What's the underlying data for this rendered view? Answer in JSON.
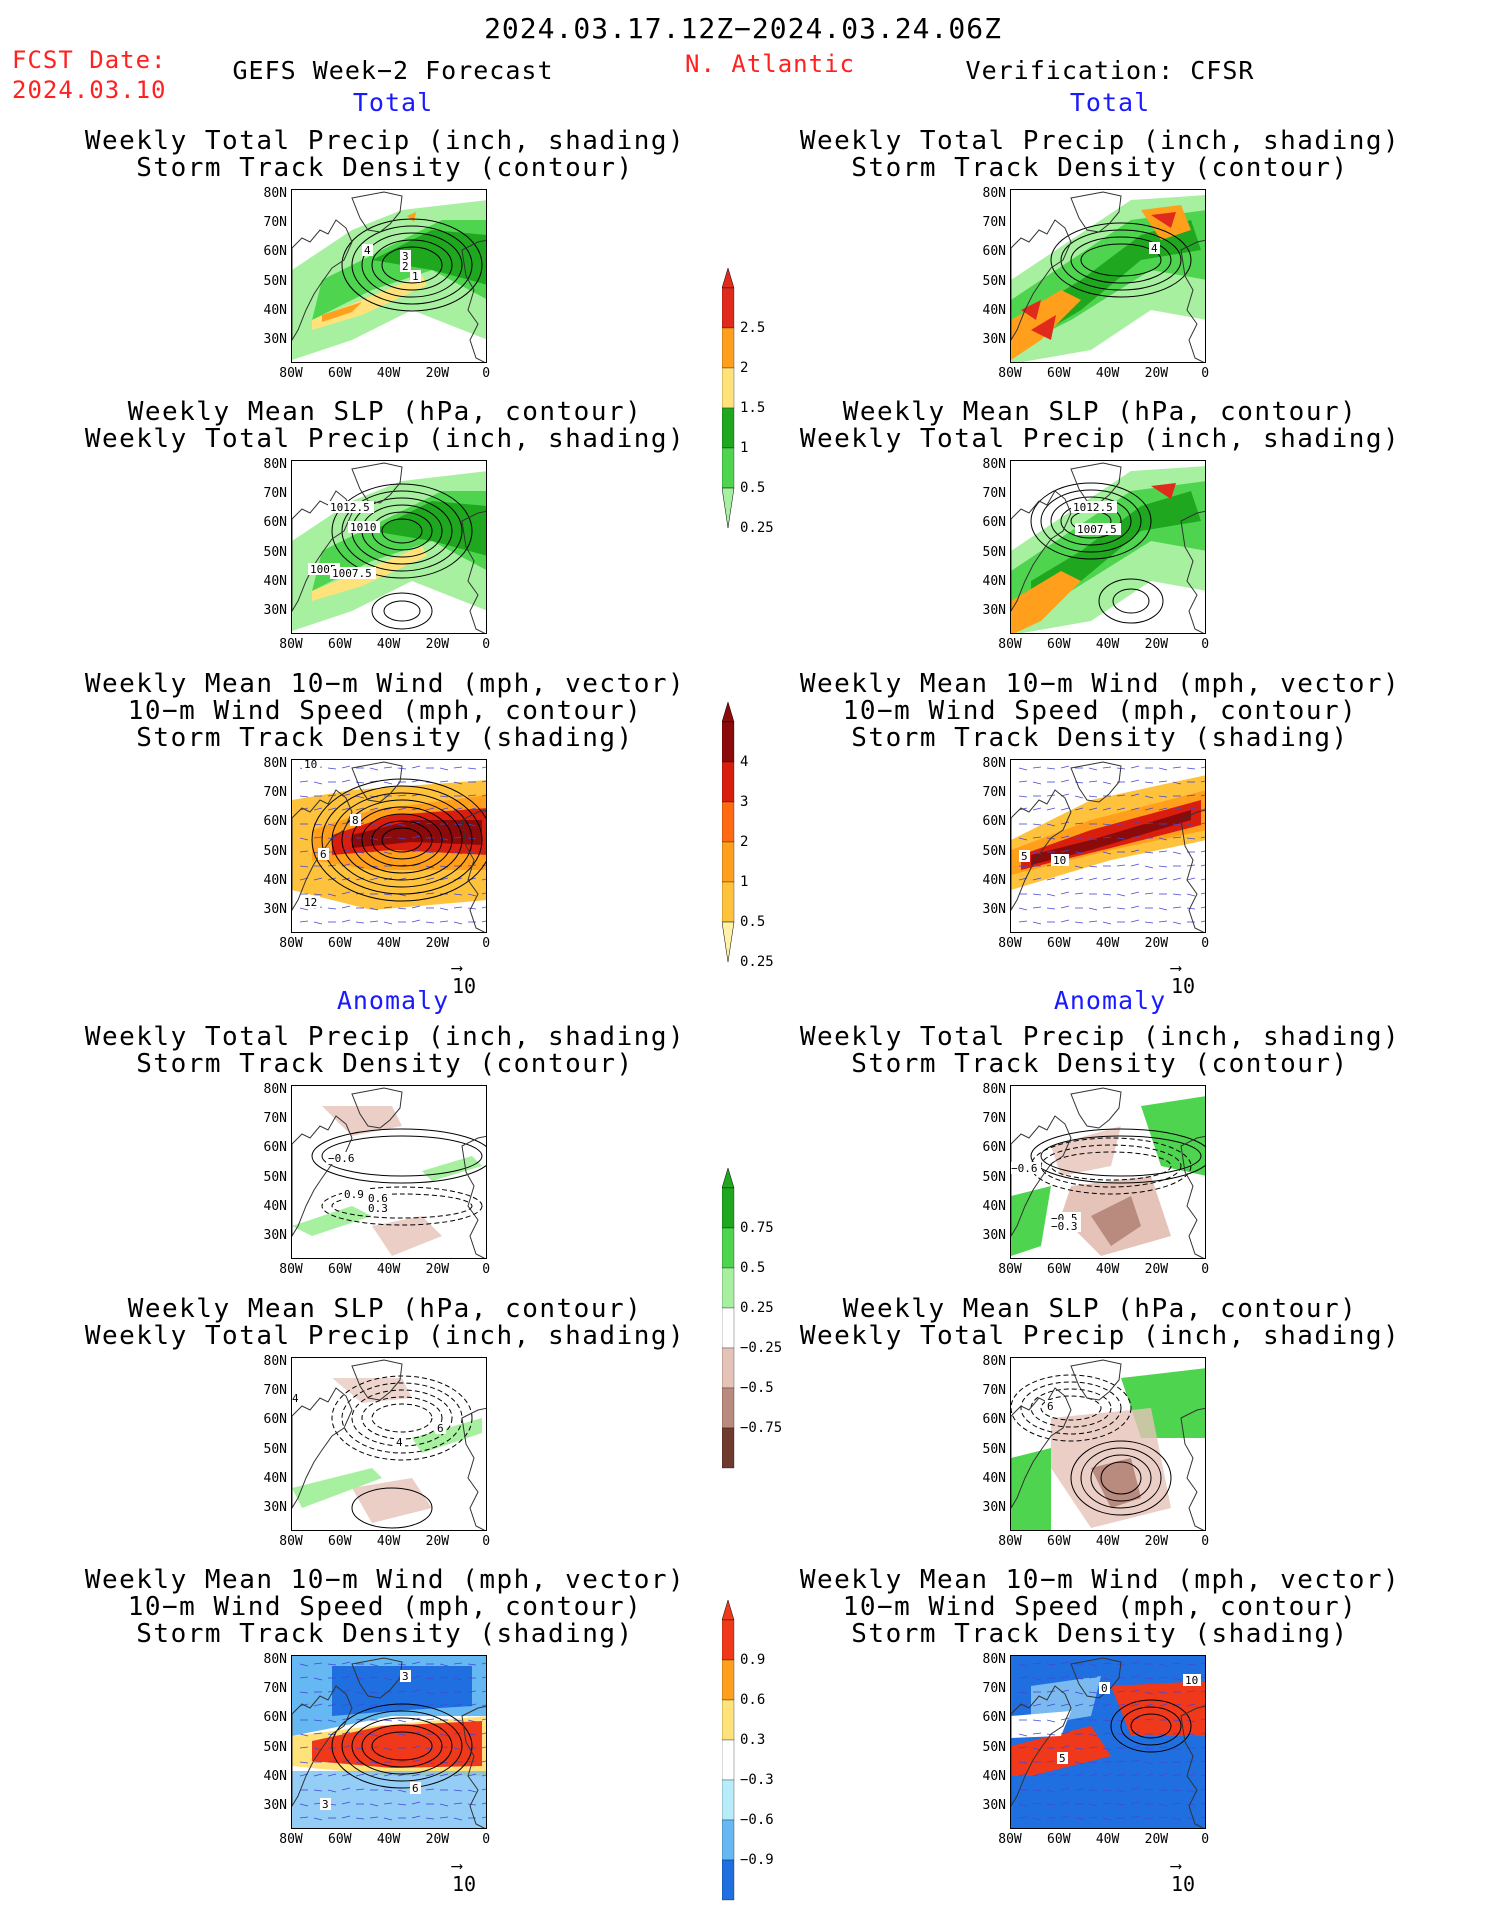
{
  "header": {
    "date_range": "2024.03.17.12Z−2024.03.24.06Z",
    "fcst_date_label": "FCST Date:",
    "fcst_date": "2024.03.10",
    "left_title": "GEFS Week−2 Forecast",
    "region": "N. Atlantic",
    "right_title": "Verification: CFSR"
  },
  "sections": {
    "total": "Total",
    "anomaly": "Anomaly"
  },
  "panel_titles": {
    "precip_storm": [
      "Weekly Total Precip (inch, shading)",
      "Storm Track Density (contour)"
    ],
    "slp_precip": [
      "Weekly Mean SLP (hPa, contour)",
      "Weekly Total Precip (inch, shading)"
    ],
    "wind_storm": [
      "Weekly Mean 10−m Wind (mph, vector)",
      "10−m Wind Speed (mph, contour)",
      "Storm Track Density (shading)"
    ]
  },
  "axes": {
    "lat_labels": [
      "80N",
      "70N",
      "60N",
      "50N",
      "40N",
      "30N"
    ],
    "lon_labels": [
      "80W",
      "60W",
      "40W",
      "20W",
      "0"
    ]
  },
  "vector_ref": "10",
  "contour_labels": {
    "fcst_total_precip": [
      "3",
      "2",
      "1",
      "4"
    ],
    "fcst_total_slp": [
      "1012.5",
      "1010",
      "1005",
      "1007.5"
    ],
    "fcst_total_wind": [
      "10",
      "8",
      "6",
      "12"
    ],
    "ver_total_precip": [
      "4"
    ],
    "ver_total_slp": [
      "1012.5",
      "1007.5"
    ],
    "ver_total_wind": [
      "5",
      "10"
    ],
    "fcst_anom_precip": [
      "−0.6",
      "0.9",
      "0.6",
      "0.3"
    ],
    "fcst_anom_slp": [
      "4",
      "6",
      "4"
    ],
    "fcst_anom_wind": [
      "3",
      "6",
      "3"
    ],
    "ver_anom_precip": [
      "−0.6",
      "−0.5",
      "−0.3"
    ],
    "ver_anom_slp": [
      "6"
    ],
    "ver_anom_wind": [
      "0",
      "10",
      "5"
    ]
  },
  "colorbars": {
    "precip_total": {
      "labels": [
        "2.5",
        "2",
        "1.5",
        "1",
        "0.5",
        "0.25"
      ],
      "colors": [
        "#e02a1c",
        "#ff9f1c",
        "#ffe27a",
        "#1fa81f",
        "#4fd44f",
        "#a6f0a0"
      ]
    },
    "storm_total": {
      "labels": [
        "4",
        "3",
        "2",
        "1",
        "0.5",
        "0.25"
      ],
      "colors": [
        "#8b0a0a",
        "#d91e10",
        "#ff6a12",
        "#ff9f1c",
        "#ffc23c",
        "#fff2a6"
      ]
    },
    "precip_anom": {
      "labels": [
        "0.75",
        "0.5",
        "0.25",
        "−0.25",
        "−0.5",
        "−0.75"
      ],
      "colors": [
        "#1fa81f",
        "#4fd44f",
        "#a6f0a0",
        "#ffffff",
        "#e6c3b8",
        "#b98a7e",
        "#6e3b2e"
      ]
    },
    "storm_anom": {
      "labels": [
        "0.9",
        "0.6",
        "0.3",
        "−0.3",
        "−0.6",
        "−0.9"
      ],
      "colors": [
        "#f0381a",
        "#ff9f1c",
        "#ffe27a",
        "#ffffff",
        "#b8ecfa",
        "#66b8f2",
        "#1f6fe0"
      ]
    }
  }
}
